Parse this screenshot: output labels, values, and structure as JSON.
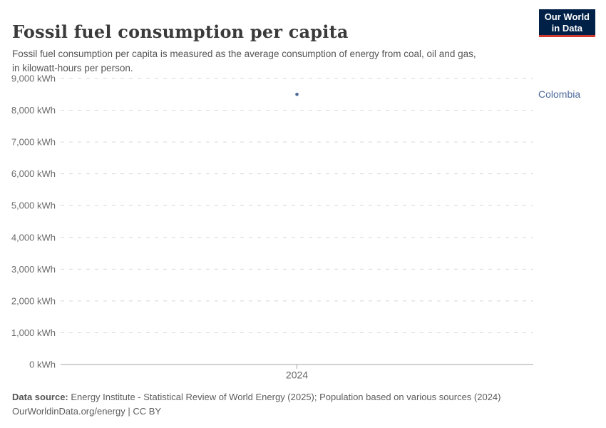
{
  "header": {
    "title": "Fossil fuel consumption per capita",
    "subtitle_lines": [
      "Fossil fuel consumption per capita is measured as the average consumption of energy from coal, oil and gas,",
      "in kilowatt-hours per person."
    ],
    "logo": {
      "line1": "Our World",
      "line2": "in Data",
      "bg_color": "#002147",
      "accent_color": "#d33a2f"
    }
  },
  "chart_data": {
    "type": "scatter",
    "title": "Fossil fuel consumption per capita",
    "x": [
      2024
    ],
    "series": [
      {
        "name": "Colombia",
        "values": [
          8500
        ],
        "color": "#4C6A9C"
      }
    ],
    "xlabel": "",
    "ylabel": "",
    "ylim": [
      0,
      9000
    ],
    "ytick_step": 1000,
    "ytick_suffix": " kWh",
    "xticks": [
      "2024"
    ],
    "grid": "horizontal-dashed",
    "legend_position": "right-of-point",
    "gridline_color": "#d8d8d8",
    "axis_color": "#a3a3a3"
  },
  "footer": {
    "datasource_label": "Data source:",
    "datasource_text": " Energy Institute - Statistical Review of World Energy (2025); Population based on various sources (2024)",
    "license_line": "OurWorldinData.org/energy | CC BY"
  }
}
